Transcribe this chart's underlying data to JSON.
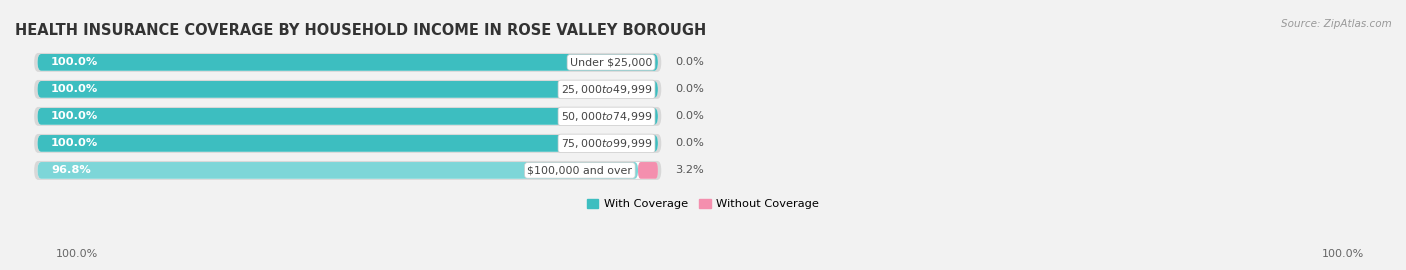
{
  "title": "HEALTH INSURANCE COVERAGE BY HOUSEHOLD INCOME IN ROSE VALLEY BOROUGH",
  "source": "Source: ZipAtlas.com",
  "categories": [
    "Under $25,000",
    "$25,000 to $49,999",
    "$50,000 to $74,999",
    "$75,000 to $99,999",
    "$100,000 and over"
  ],
  "with_coverage": [
    100.0,
    100.0,
    100.0,
    100.0,
    96.8
  ],
  "without_coverage": [
    0.0,
    0.0,
    0.0,
    0.0,
    3.2
  ],
  "color_with": "#3DBEC0",
  "color_with_light": "#7DD6D8",
  "color_without": "#F48FAE",
  "label_with": "With Coverage",
  "label_without": "Without Coverage",
  "bg_color": "#f2f2f2",
  "bar_bg": "#e8e8e8",
  "bar_inner_bg": "#ffffff",
  "title_fontsize": 10.5,
  "label_fontsize": 8.2,
  "tick_fontsize": 8,
  "source_fontsize": 7.5,
  "bar_height": 0.62,
  "figsize": [
    14.06,
    2.7
  ],
  "dpi": 100,
  "bottom_left_label": "100.0%",
  "bottom_right_label": "100.0%"
}
